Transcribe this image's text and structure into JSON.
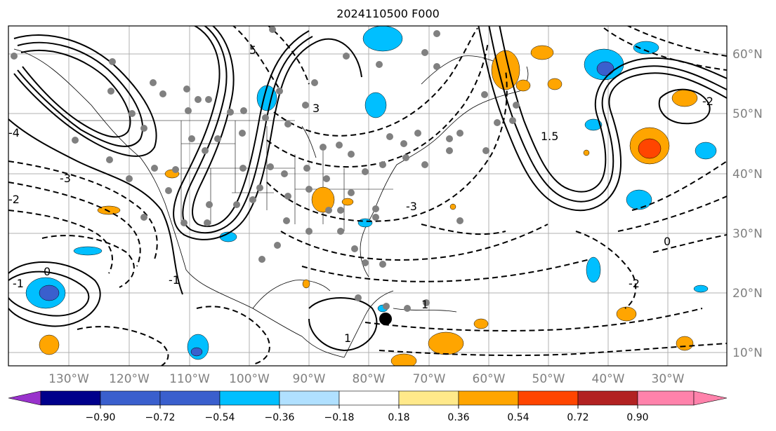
{
  "title": "2024110500 F000",
  "lon_labels": [
    "130°W",
    "120°W",
    "110°W",
    "100°W",
    "90°W",
    "80°W",
    "70°W",
    "60°W",
    "50°W",
    "40°W",
    "30°W"
  ],
  "lat_labels": [
    "60°N",
    "50°N",
    "40°N",
    "30°N",
    "20°N",
    "10°N"
  ],
  "contour_labels": [
    "5",
    "3",
    "1",
    "0",
    "-1",
    "-2",
    "-3",
    "-4",
    "1.5"
  ],
  "colorbar": {
    "ticks": [
      "−0.90",
      "−0.72",
      "−0.54",
      "−0.36",
      "−0.18",
      "0.18",
      "0.36",
      "0.54",
      "0.72",
      "0.90"
    ],
    "colors": [
      "#9932cc",
      "#00008b",
      "#3a5fcd",
      "#00bfff",
      "#b0e0ff",
      "#ffffff",
      "#ffe98a",
      "#ffa500",
      "#ff4500",
      "#b22222",
      "#ff82ab"
    ]
  },
  "colors": {
    "gray_text": "#808080",
    "contour": "#000000",
    "dot": "#808080"
  }
}
